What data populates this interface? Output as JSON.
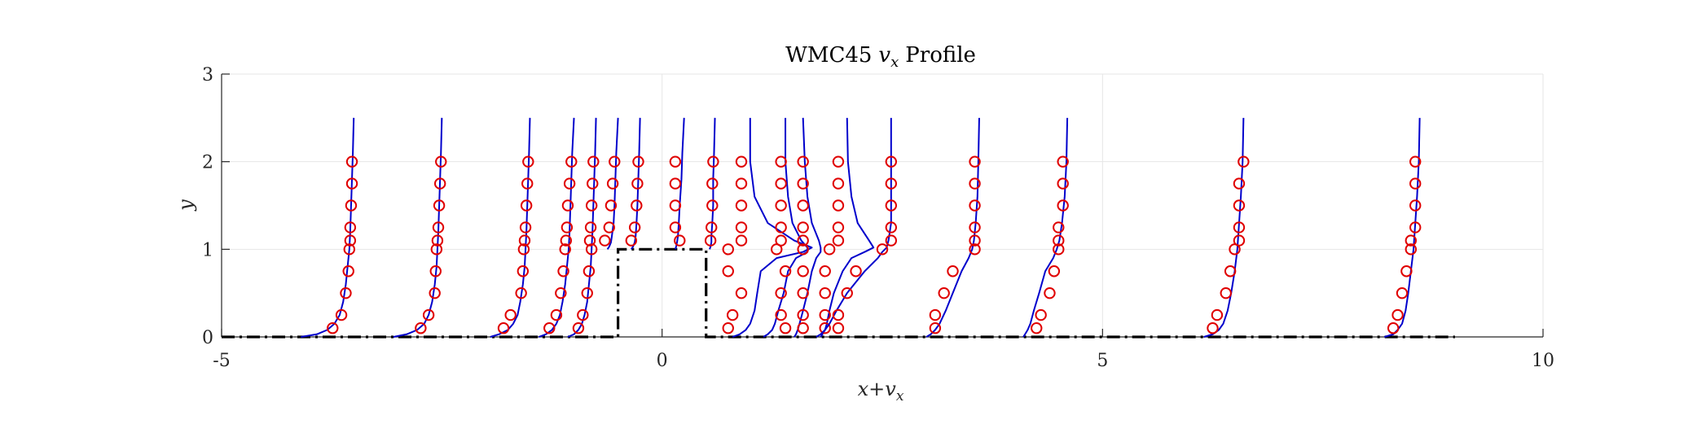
{
  "chart_data": {
    "type": "line",
    "title": "WMC45 vx Profile",
    "title_parts": {
      "prefix": "WMC45",
      "symbol": "v",
      "subscript": "x",
      "suffix": "Profile"
    },
    "xlabel": "x+vx",
    "xlabel_parts": {
      "a": "x",
      "plus": "+",
      "b": "v",
      "sub": "x"
    },
    "ylabel": "y",
    "xlim": [
      -5,
      10
    ],
    "ylim": [
      0,
      3
    ],
    "xticks": [
      -5,
      0,
      5,
      10
    ],
    "yticks": [
      0,
      1,
      2,
      3
    ],
    "xtick_labels": [
      "-5",
      "0",
      "5",
      "10"
    ],
    "ytick_labels": [
      "0",
      "1",
      "2",
      "3"
    ],
    "grid": true,
    "colors": {
      "simulation": "#0000cc",
      "experiment": "#e00000",
      "geometry": "#000000"
    },
    "geometry_outline": {
      "style": "dash-dot",
      "x": [
        -5,
        -0.5,
        -0.5,
        0.5,
        0.5,
        9
      ],
      "y": [
        0,
        0,
        1,
        1,
        0,
        0
      ]
    },
    "experiment_y_levels": [
      0.1,
      0.25,
      0.5,
      0.75,
      1.0,
      1.1,
      1.25,
      1.5,
      1.75,
      2.0
    ],
    "experiment_y_levels_above_step": [
      1.1,
      1.25,
      1.5,
      1.75,
      2.0
    ],
    "profiles": [
      {
        "x0": -3.5,
        "above_step": false,
        "vx": [
          -0.24,
          -0.14,
          -0.09,
          -0.06,
          -0.05,
          -0.04,
          -0.04,
          -0.03,
          -0.02,
          -0.02
        ],
        "sim_y": [
          0,
          0.03,
          0.08,
          0.15,
          0.25,
          0.4,
          0.6,
          0.8,
          1.0,
          1.2,
          1.5,
          1.8,
          2.1,
          2.5
        ],
        "sim_vx": [
          -0.6,
          -0.42,
          -0.3,
          -0.22,
          -0.16,
          -0.12,
          -0.09,
          -0.07,
          -0.05,
          -0.04,
          -0.03,
          -0.02,
          -0.01,
          0.0
        ]
      },
      {
        "x0": -2.5,
        "above_step": false,
        "vx": [
          -0.24,
          -0.15,
          -0.08,
          -0.07,
          -0.06,
          -0.05,
          -0.04,
          -0.03,
          -0.02,
          -0.01
        ],
        "sim_y": [
          0,
          0.03,
          0.08,
          0.15,
          0.25,
          0.4,
          0.6,
          0.8,
          1.0,
          1.2,
          1.5,
          1.8,
          2.1,
          2.5
        ],
        "sim_vx": [
          -0.55,
          -0.4,
          -0.28,
          -0.2,
          -0.15,
          -0.11,
          -0.08,
          -0.06,
          -0.05,
          -0.04,
          -0.03,
          -0.02,
          -0.01,
          0.0
        ]
      },
      {
        "x0": -1.5,
        "above_step": false,
        "vx": [
          -0.3,
          -0.22,
          -0.1,
          -0.08,
          -0.07,
          -0.06,
          -0.05,
          -0.04,
          -0.03,
          -0.02
        ],
        "sim_y": [
          0,
          0.03,
          0.08,
          0.15,
          0.25,
          0.4,
          0.6,
          0.8,
          1.0,
          1.2,
          1.5,
          1.8,
          2.1,
          2.5
        ],
        "sim_vx": [
          -0.45,
          -0.35,
          -0.25,
          -0.19,
          -0.14,
          -0.11,
          -0.08,
          -0.06,
          -0.05,
          -0.04,
          -0.03,
          -0.02,
          -0.01,
          0.0
        ]
      },
      {
        "x0": -1.0,
        "above_step": false,
        "vx": [
          -0.28,
          -0.2,
          -0.15,
          -0.12,
          -0.1,
          -0.09,
          -0.08,
          -0.07,
          -0.05,
          -0.03
        ],
        "sim_y": [
          0,
          0.03,
          0.08,
          0.15,
          0.25,
          0.4,
          0.6,
          0.8,
          1.0,
          1.2,
          1.5,
          1.8,
          2.1,
          2.5
        ],
        "sim_vx": [
          -0.4,
          -0.32,
          -0.25,
          -0.2,
          -0.16,
          -0.13,
          -0.1,
          -0.08,
          -0.06,
          -0.05,
          -0.04,
          -0.03,
          -0.02,
          0.0
        ]
      },
      {
        "x0": -0.75,
        "above_step": false,
        "vx": [
          -0.2,
          -0.15,
          -0.1,
          -0.08,
          -0.05,
          -0.07,
          -0.06,
          -0.05,
          -0.04,
          -0.03
        ],
        "sim_y": [
          0,
          0.03,
          0.08,
          0.15,
          0.25,
          0.4,
          0.6,
          0.8,
          1.0,
          1.2,
          1.5,
          1.8,
          2.1,
          2.5
        ],
        "sim_vx": [
          -0.32,
          -0.25,
          -0.2,
          -0.16,
          -0.13,
          -0.1,
          -0.08,
          -0.06,
          -0.05,
          -0.04,
          -0.03,
          -0.02,
          -0.01,
          0.0
        ]
      },
      {
        "x0": -0.5,
        "above_step": true,
        "vx": [
          -0.15,
          -0.1,
          -0.08,
          -0.06,
          -0.04
        ],
        "sim_y": [
          1.0,
          1.03,
          1.08,
          1.15,
          1.3,
          1.5,
          1.8,
          2.1,
          2.5
        ],
        "sim_vx": [
          -0.12,
          -0.1,
          -0.08,
          -0.07,
          -0.05,
          -0.04,
          -0.03,
          -0.02,
          0.0
        ]
      },
      {
        "x0": -0.25,
        "above_step": true,
        "vx": [
          -0.1,
          -0.06,
          -0.04,
          -0.03,
          -0.02
        ],
        "sim_y": [
          1.0,
          1.03,
          1.08,
          1.15,
          1.3,
          1.5,
          1.8,
          2.1,
          2.5
        ],
        "sim_vx": [
          -0.1,
          -0.08,
          -0.06,
          -0.05,
          -0.04,
          -0.03,
          -0.02,
          -0.01,
          0.0
        ]
      },
      {
        "x0": 0.25,
        "above_step": true,
        "vx": [
          -0.05,
          -0.1,
          -0.1,
          -0.1,
          -0.1
        ],
        "sim_y": [
          1.0,
          1.03,
          1.08,
          1.15,
          1.3,
          1.5,
          1.8,
          2.1,
          2.5
        ],
        "sim_vx": [
          -0.1,
          -0.09,
          -0.08,
          -0.07,
          -0.06,
          -0.05,
          -0.03,
          -0.02,
          0.0
        ]
      },
      {
        "x0": 0.6,
        "above_step": true,
        "vx": [
          -0.05,
          -0.04,
          -0.03,
          -0.03,
          -0.02
        ],
        "sim_y": [
          1.0,
          1.03,
          1.08,
          1.15,
          1.3,
          1.5,
          1.8,
          2.1,
          2.5
        ],
        "sim_vx": [
          -0.06,
          -0.05,
          -0.04,
          -0.04,
          -0.03,
          -0.02,
          -0.02,
          -0.01,
          0.0
        ]
      },
      {
        "x0": 1.0,
        "above_step": false,
        "vx": [
          -0.25,
          -0.2,
          -0.1,
          -0.25,
          -0.25,
          -0.1,
          -0.1,
          -0.1,
          -0.1,
          -0.1
        ],
        "sim_y": [
          0,
          0.03,
          0.08,
          0.15,
          0.3,
          0.5,
          0.75,
          0.9,
          0.97,
          1.02,
          1.1,
          1.3,
          1.6,
          2.0,
          2.5
        ],
        "sim_vx": [
          -0.2,
          -0.12,
          -0.05,
          0.0,
          0.05,
          0.08,
          0.12,
          0.3,
          0.6,
          0.7,
          0.5,
          0.2,
          0.05,
          0.0,
          0.0
        ]
      },
      {
        "x0": 1.4,
        "above_step": false,
        "vx": [
          0.0,
          -0.05,
          -0.05,
          0.0,
          -0.1,
          -0.05,
          -0.05,
          -0.05,
          -0.05,
          -0.05
        ],
        "sim_y": [
          0,
          0.03,
          0.08,
          0.15,
          0.3,
          0.5,
          0.75,
          0.9,
          0.97,
          1.02,
          1.1,
          1.3,
          1.6,
          2.0,
          2.5
        ],
        "sim_vx": [
          -0.25,
          -0.2,
          -0.15,
          -0.12,
          -0.08,
          -0.02,
          0.03,
          0.12,
          0.25,
          0.25,
          0.18,
          0.08,
          0.03,
          0.0,
          0.0
        ]
      },
      {
        "x0": 1.6,
        "above_step": false,
        "vx": [
          0.0,
          0.0,
          0.0,
          0.0,
          0.0,
          0.0,
          0.0,
          0.0,
          0.0,
          0.0
        ],
        "sim_y": [
          0,
          0.03,
          0.08,
          0.15,
          0.3,
          0.5,
          0.75,
          0.9,
          0.97,
          1.02,
          1.1,
          1.3,
          1.6,
          2.0,
          2.5
        ],
        "sim_vx": [
          -0.1,
          -0.08,
          -0.06,
          -0.04,
          0.0,
          0.05,
          0.1,
          0.15,
          0.2,
          0.2,
          0.18,
          0.1,
          0.05,
          0.02,
          0.0
        ]
      },
      {
        "x0": 2.1,
        "above_step": false,
        "vx": [
          -0.25,
          -0.25,
          -0.25,
          -0.25,
          -0.2,
          -0.1,
          -0.1,
          -0.1,
          -0.1,
          -0.1
        ],
        "sim_y": [
          0,
          0.03,
          0.08,
          0.15,
          0.3,
          0.5,
          0.75,
          0.9,
          0.97,
          1.02,
          1.1,
          1.3,
          1.6,
          2.0,
          2.5
        ],
        "sim_vx": [
          -0.3,
          -0.28,
          -0.25,
          -0.23,
          -0.2,
          -0.15,
          -0.05,
          0.05,
          0.2,
          0.3,
          0.25,
          0.12,
          0.05,
          0.01,
          0.0
        ]
      },
      {
        "x0": 2.6,
        "above_step": false,
        "vx": [
          -0.6,
          -0.6,
          -0.5,
          -0.4,
          -0.1,
          0.0,
          0.0,
          0.0,
          0.0,
          0.0
        ],
        "sim_y": [
          0,
          0.03,
          0.08,
          0.15,
          0.3,
          0.5,
          0.75,
          0.9,
          0.97,
          1.02,
          1.1,
          1.3,
          1.6,
          2.0,
          2.5
        ],
        "sim_vx": [
          -0.85,
          -0.8,
          -0.75,
          -0.7,
          -0.62,
          -0.5,
          -0.3,
          -0.15,
          -0.1,
          -0.05,
          -0.03,
          0.0,
          0.0,
          0.0,
          0.0
        ]
      },
      {
        "x0": 3.6,
        "above_step": false,
        "vx": [
          -0.5,
          -0.5,
          -0.4,
          -0.3,
          -0.05,
          -0.05,
          -0.05,
          -0.05,
          -0.05,
          -0.05
        ],
        "sim_y": [
          0,
          0.03,
          0.08,
          0.15,
          0.3,
          0.5,
          0.75,
          0.9,
          1.0,
          1.1,
          1.3,
          1.6,
          2.0,
          2.5
        ],
        "sim_vx": [
          -0.6,
          -0.55,
          -0.5,
          -0.45,
          -0.38,
          -0.3,
          -0.2,
          -0.12,
          -0.08,
          -0.06,
          -0.04,
          -0.02,
          -0.01,
          0.0
        ]
      },
      {
        "x0": 4.6,
        "above_step": false,
        "vx": [
          -0.35,
          -0.3,
          -0.2,
          -0.15,
          -0.1,
          -0.1,
          -0.1,
          -0.05,
          -0.05,
          -0.05
        ],
        "sim_y": [
          0,
          0.03,
          0.08,
          0.15,
          0.3,
          0.5,
          0.75,
          0.9,
          1.0,
          1.1,
          1.3,
          1.6,
          2.0,
          2.5
        ],
        "sim_vx": [
          -0.5,
          -0.48,
          -0.45,
          -0.42,
          -0.38,
          -0.32,
          -0.25,
          -0.16,
          -0.12,
          -0.09,
          -0.06,
          -0.03,
          -0.01,
          0.0
        ]
      },
      {
        "x0": 6.6,
        "above_step": false,
        "vx": [
          -0.35,
          -0.3,
          -0.2,
          -0.15,
          -0.1,
          -0.05,
          -0.05,
          -0.05,
          -0.05,
          0.0
        ],
        "sim_y": [
          0,
          0.03,
          0.08,
          0.15,
          0.3,
          0.5,
          0.75,
          1.0,
          1.3,
          1.6,
          2.0,
          2.5
        ],
        "sim_vx": [
          -0.45,
          -0.35,
          -0.28,
          -0.23,
          -0.18,
          -0.14,
          -0.1,
          -0.07,
          -0.05,
          -0.03,
          -0.01,
          0.0
        ]
      },
      {
        "x0": 8.6,
        "above_step": false,
        "vx": [
          -0.3,
          -0.25,
          -0.2,
          -0.15,
          -0.1,
          -0.1,
          -0.05,
          -0.05,
          -0.05,
          -0.05
        ],
        "sim_y": [
          0,
          0.03,
          0.08,
          0.15,
          0.3,
          0.5,
          0.75,
          1.0,
          1.3,
          1.6,
          2.0,
          2.5
        ],
        "sim_vx": [
          -0.4,
          -0.3,
          -0.25,
          -0.2,
          -0.16,
          -0.13,
          -0.1,
          -0.07,
          -0.05,
          -0.03,
          -0.01,
          0.0
        ]
      }
    ]
  }
}
